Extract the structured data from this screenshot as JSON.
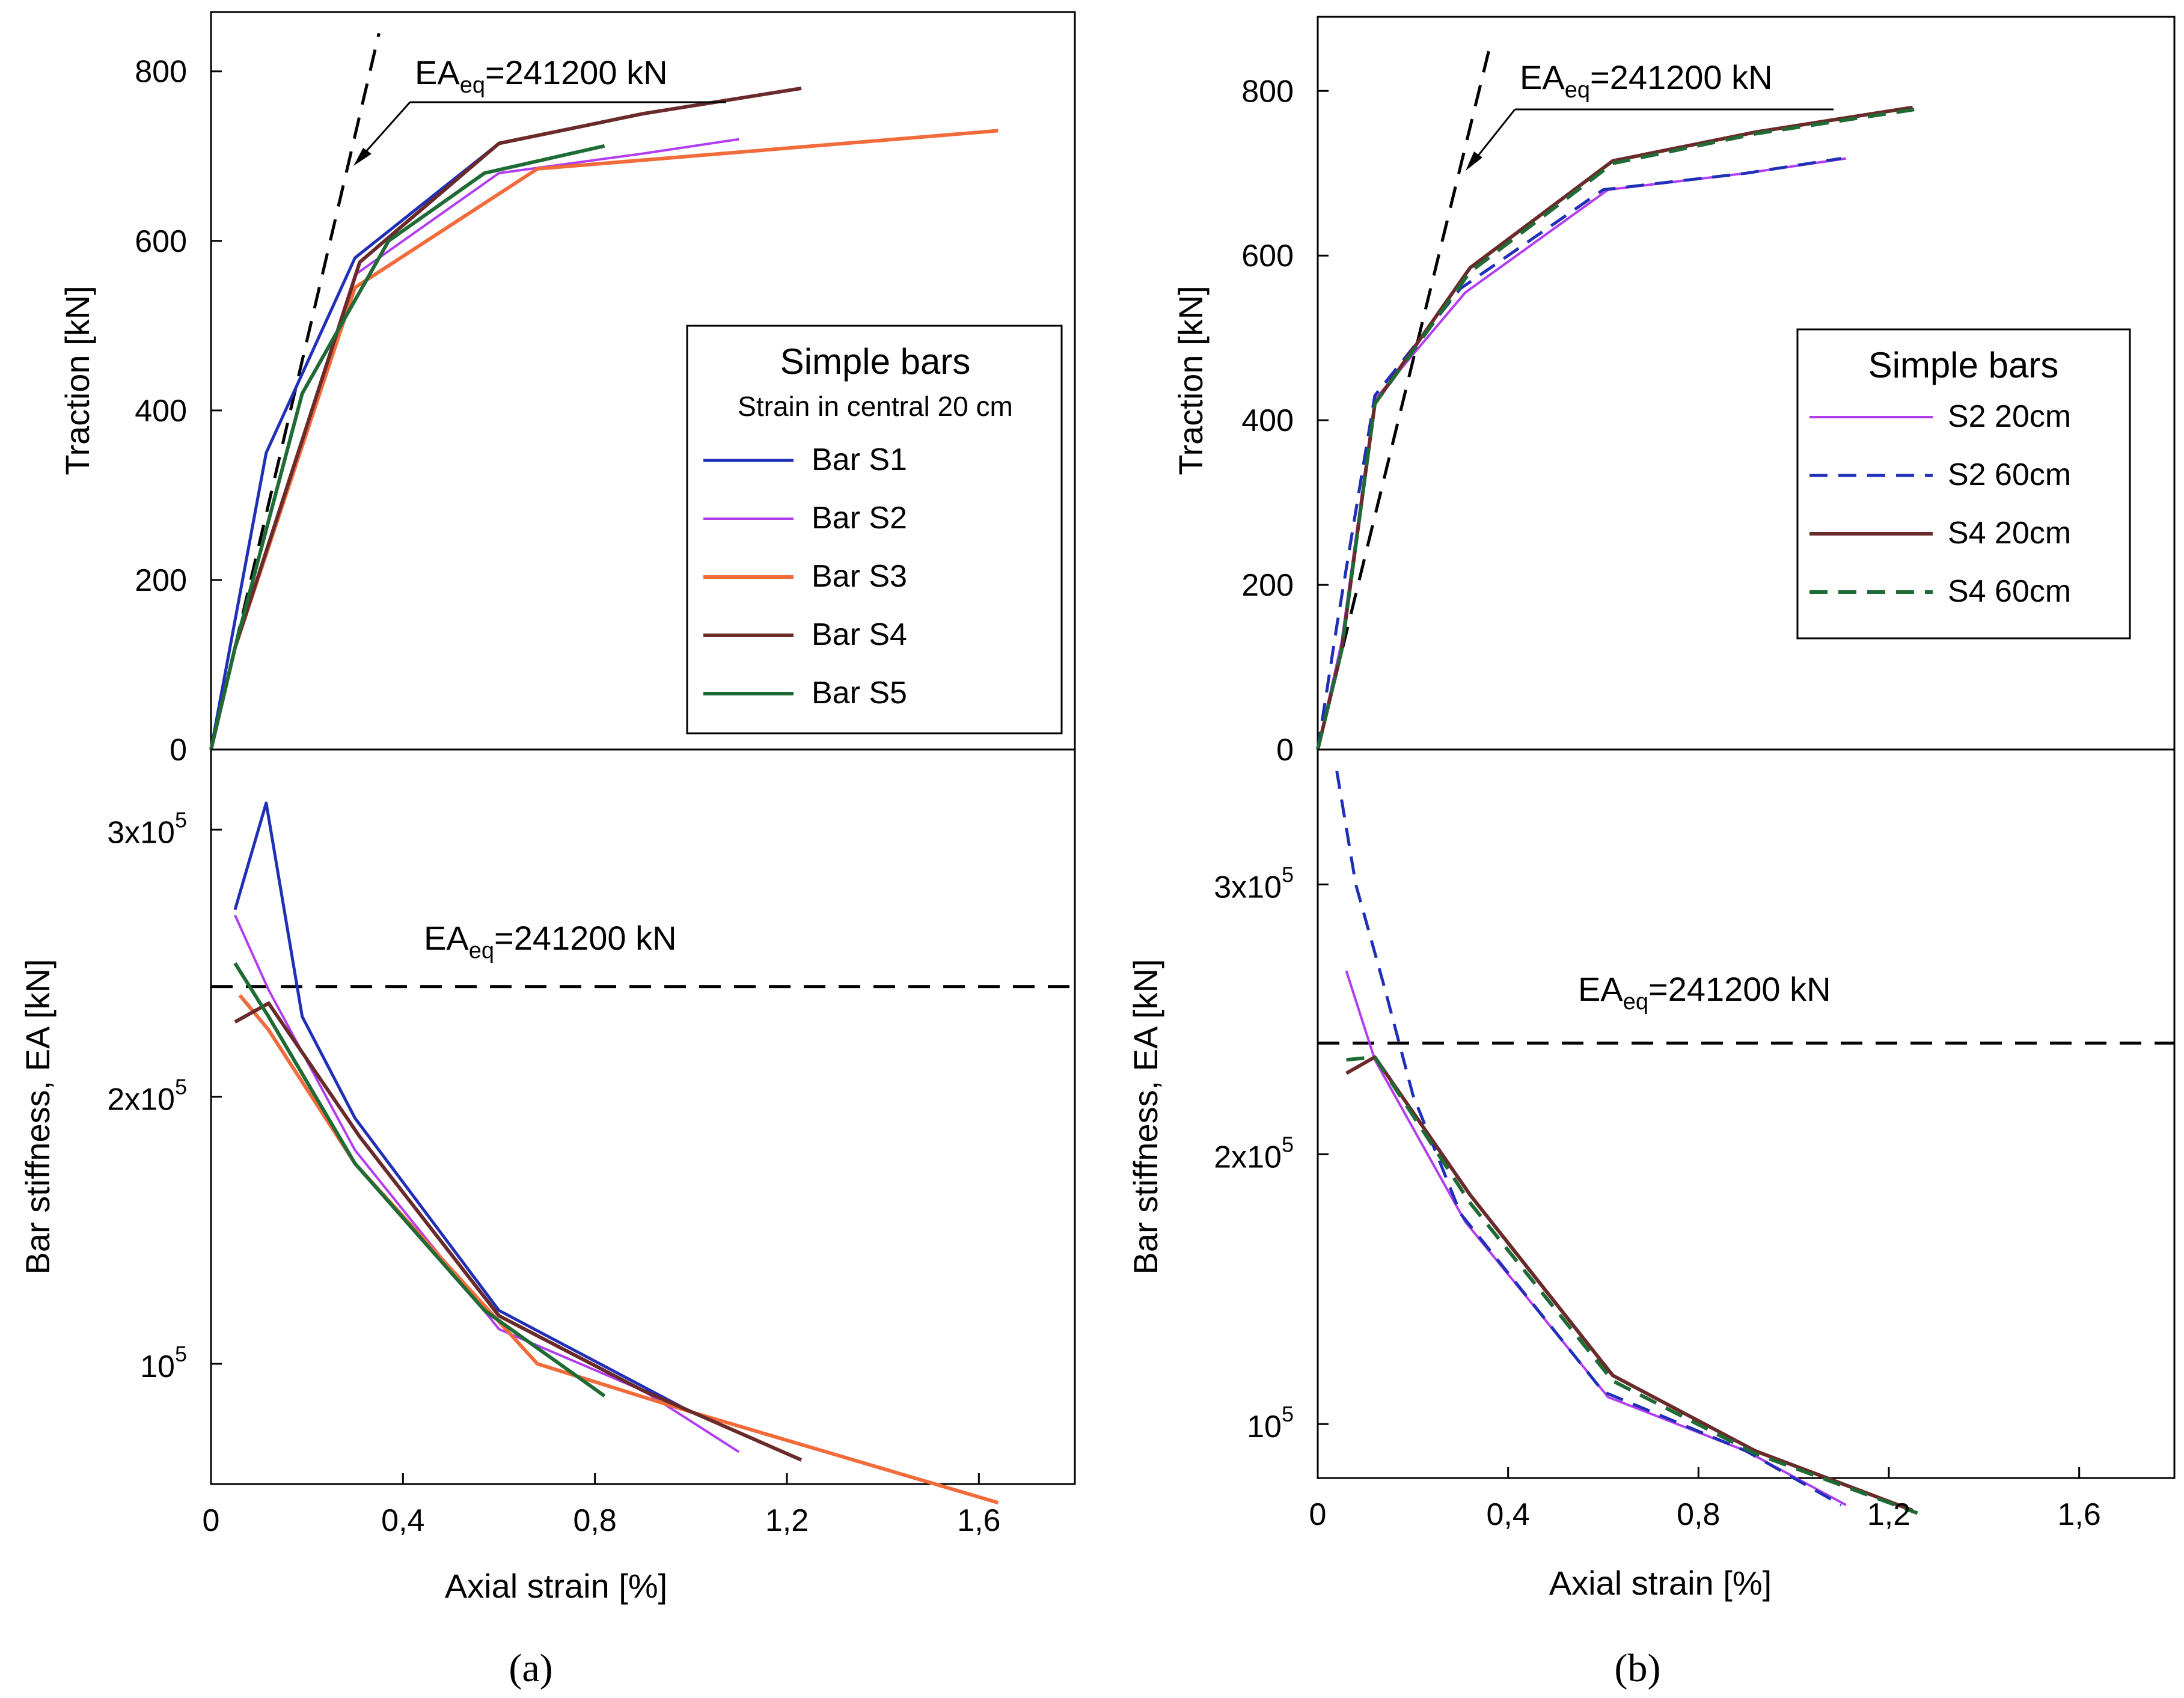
{
  "colors": {
    "S1": "#1f2fb8",
    "S2": "#b23cf0",
    "S3": "#f26b3a",
    "S4": "#6b2a2a",
    "S5": "#1f6b36",
    "S2_60": "#1f2fb8",
    "S4_60": "#1f6b36",
    "reference": "#000000"
  },
  "chart_data": [
    {
      "panel": "a",
      "panel_label": "(a)",
      "type": "line",
      "xlabel": "Axial strain [%]",
      "xlim": [
        0,
        1.8
      ],
      "xticks": [
        "0",
        "0,4",
        "0,8",
        "1,2",
        "1,6"
      ],
      "xtick_values": [
        0,
        0.4,
        0.8,
        1.2,
        1.6
      ],
      "legend": {
        "title": "Simple bars",
        "subtitle": "Strain in central 20 cm",
        "placement": "center-right (top subplot)"
      },
      "top": {
        "ylabel": "Traction [kN]",
        "ylim": [
          0,
          870
        ],
        "yticks": [
          "0",
          "200",
          "400",
          "600",
          "800"
        ],
        "ytick_values": [
          0,
          200,
          400,
          600,
          800
        ],
        "reference_line": {
          "x": [
            0,
            0.35
          ],
          "y": [
            0,
            845
          ],
          "label_main": "EA",
          "label_sub": "eq",
          "label_rest": "=241200 kN"
        },
        "series": [
          {
            "name": "Bar S1",
            "key": "S1",
            "dash": false,
            "x": [
              0,
              0.115,
              0.3,
              0.6
            ],
            "y": [
              0,
              350,
              580,
              715
            ]
          },
          {
            "name": "Bar S2",
            "key": "S2",
            "dash": false,
            "x": [
              0,
              0.05,
              0.3,
              0.6,
              0.9,
              1.1
            ],
            "y": [
              0,
              120,
              560,
              680,
              703,
              720
            ]
          },
          {
            "name": "Bar S3",
            "key": "S3",
            "dash": false,
            "x": [
              0,
              0.05,
              0.3,
              0.68,
              1.0,
              1.64
            ],
            "y": [
              0,
              120,
              545,
              685,
              700,
              730
            ]
          },
          {
            "name": "Bar S4",
            "key": "S4",
            "dash": false,
            "x": [
              0,
              0.05,
              0.31,
              0.6,
              0.9,
              1.23
            ],
            "y": [
              0,
              120,
              575,
              715,
              750,
              780
            ]
          },
          {
            "name": "Bar S5",
            "key": "S5",
            "dash": false,
            "x": [
              0,
              0.05,
              0.19,
              0.37,
              0.57,
              0.82
            ],
            "y": [
              0,
              120,
              420,
              600,
              680,
              712
            ]
          }
        ]
      },
      "bottom": {
        "ylabel": "Bar stiffness, EA [kN]",
        "ylim": [
          55000,
          330000
        ],
        "yticks": [
          {
            "base": "10",
            "exp": "5"
          },
          {
            "base": "2x10",
            "exp": "5"
          },
          {
            "base": "3x10",
            "exp": "5"
          }
        ],
        "ytick_values": [
          100000,
          200000,
          300000
        ],
        "reference_line": {
          "y": 241200,
          "label_main": "EA",
          "label_sub": "eq",
          "label_rest": "=241200 kN"
        },
        "series": [
          {
            "name": "Bar S1",
            "key": "S1",
            "dash": false,
            "x": [
              0.05,
              0.115,
              0.19,
              0.3,
              0.6,
              1.0
            ],
            "y": [
              270000,
              310000,
              230000,
              192000,
              120000,
              82000
            ]
          },
          {
            "name": "Bar S2",
            "key": "S2",
            "dash": false,
            "x": [
              0.05,
              0.12,
              0.3,
              0.6,
              0.9,
              1.1
            ],
            "y": [
              268000,
              240000,
              180000,
              113000,
              90000,
              67000
            ]
          },
          {
            "name": "Bar S3",
            "key": "S3",
            "dash": false,
            "x": [
              0.06,
              0.12,
              0.3,
              0.68,
              1.0,
              1.64
            ],
            "y": [
              238000,
              225000,
              175000,
              100000,
              82000,
              48000
            ]
          },
          {
            "name": "Bar S4",
            "key": "S4",
            "dash": false,
            "x": [
              0.05,
              0.12,
              0.31,
              0.6,
              0.9,
              1.23
            ],
            "y": [
              228000,
              235000,
              185000,
              118000,
              90000,
              64000
            ]
          },
          {
            "name": "Bar S5",
            "key": "S5",
            "dash": false,
            "x": [
              0.05,
              0.12,
              0.3,
              0.57,
              0.82
            ],
            "y": [
              250000,
              230000,
              175000,
              120000,
              88000
            ]
          }
        ]
      }
    },
    {
      "panel": "b",
      "panel_label": "(b)",
      "type": "line",
      "xlabel": "Axial strain [%]",
      "xlim": [
        0,
        1.8
      ],
      "xticks": [
        "0",
        "0,4",
        "0,8",
        "1,2",
        "1,6"
      ],
      "xtick_values": [
        0,
        0.4,
        0.8,
        1.2,
        1.6
      ],
      "legend": {
        "title": "Simple bars",
        "subtitle": "",
        "placement": "center-right (top subplot)"
      },
      "top": {
        "ylabel": "Traction [kN]",
        "ylim": [
          0,
          890
        ],
        "yticks": [
          "0",
          "200",
          "400",
          "600",
          "800"
        ],
        "ytick_values": [
          0,
          200,
          400,
          600,
          800
        ],
        "reference_line": {
          "x": [
            0,
            0.36
          ],
          "y": [
            0,
            850
          ],
          "label_main": "EA",
          "label_sub": "eq",
          "label_rest": "=241200 kN"
        },
        "series": [
          {
            "name": "S2 20cm",
            "key": "S2",
            "dash": false,
            "x": [
              0,
              0.05,
              0.12,
              0.31,
              0.61,
              0.9,
              1.11
            ],
            "y": [
              0,
              130,
              425,
              555,
              680,
              700,
              718
            ]
          },
          {
            "name": "S2 60cm",
            "key": "S2_60",
            "dash": true,
            "x": [
              0,
              0.04,
              0.12,
              0.3,
              0.6,
              0.9,
              1.1
            ],
            "y": [
              0,
              150,
              430,
              560,
              680,
              700,
              718
            ]
          },
          {
            "name": "S4 20cm",
            "key": "S4",
            "dash": false,
            "x": [
              0,
              0.05,
              0.12,
              0.32,
              0.62,
              0.92,
              1.25
            ],
            "y": [
              0,
              120,
              420,
              585,
              715,
              750,
              780
            ]
          },
          {
            "name": "S4 60cm",
            "key": "S4_60",
            "dash": true,
            "x": [
              0,
              0.05,
              0.12,
              0.32,
              0.62,
              0.92,
              1.26
            ],
            "y": [
              0,
              120,
              420,
              580,
              712,
              748,
              778
            ]
          }
        ]
      },
      "bottom": {
        "ylabel": "Bar stiffness, EA [kN]",
        "ylim": [
          80000,
          350000
        ],
        "yticks": [
          {
            "base": "10",
            "exp": "5"
          },
          {
            "base": "2x10",
            "exp": "5"
          },
          {
            "base": "3x10",
            "exp": "5"
          }
        ],
        "ytick_values": [
          100000,
          200000,
          300000
        ],
        "reference_line": {
          "y": 241200,
          "label_main": "EA",
          "label_sub": "eq",
          "label_rest": "=241200 kN"
        },
        "series": [
          {
            "name": "S2 20cm",
            "key": "S2",
            "dash": false,
            "x": [
              0.06,
              0.12,
              0.31,
              0.61,
              0.9,
              1.11
            ],
            "y": [
              268000,
              235000,
              175000,
              110000,
              90000,
              70000
            ]
          },
          {
            "name": "S2 60cm",
            "key": "S2_60",
            "dash": true,
            "x": [
              0.04,
              0.08,
              0.14,
              0.2,
              0.3,
              0.6,
              0.9,
              1.1
            ],
            "y": [
              342000,
              300000,
              262000,
              222000,
              178000,
              112000,
              90000,
              70000
            ]
          },
          {
            "name": "S4 20cm",
            "key": "S4",
            "dash": false,
            "x": [
              0.06,
              0.12,
              0.32,
              0.62,
              0.92,
              1.25
            ],
            "y": [
              230000,
              236000,
              185000,
              118000,
              90000,
              68000
            ]
          },
          {
            "name": "S4 60cm",
            "key": "S4_60",
            "dash": true,
            "x": [
              0.06,
              0.12,
              0.32,
              0.62,
              0.92,
              1.26
            ],
            "y": [
              235000,
              236000,
              182000,
              116000,
              89000,
              67000
            ]
          }
        ]
      }
    }
  ]
}
